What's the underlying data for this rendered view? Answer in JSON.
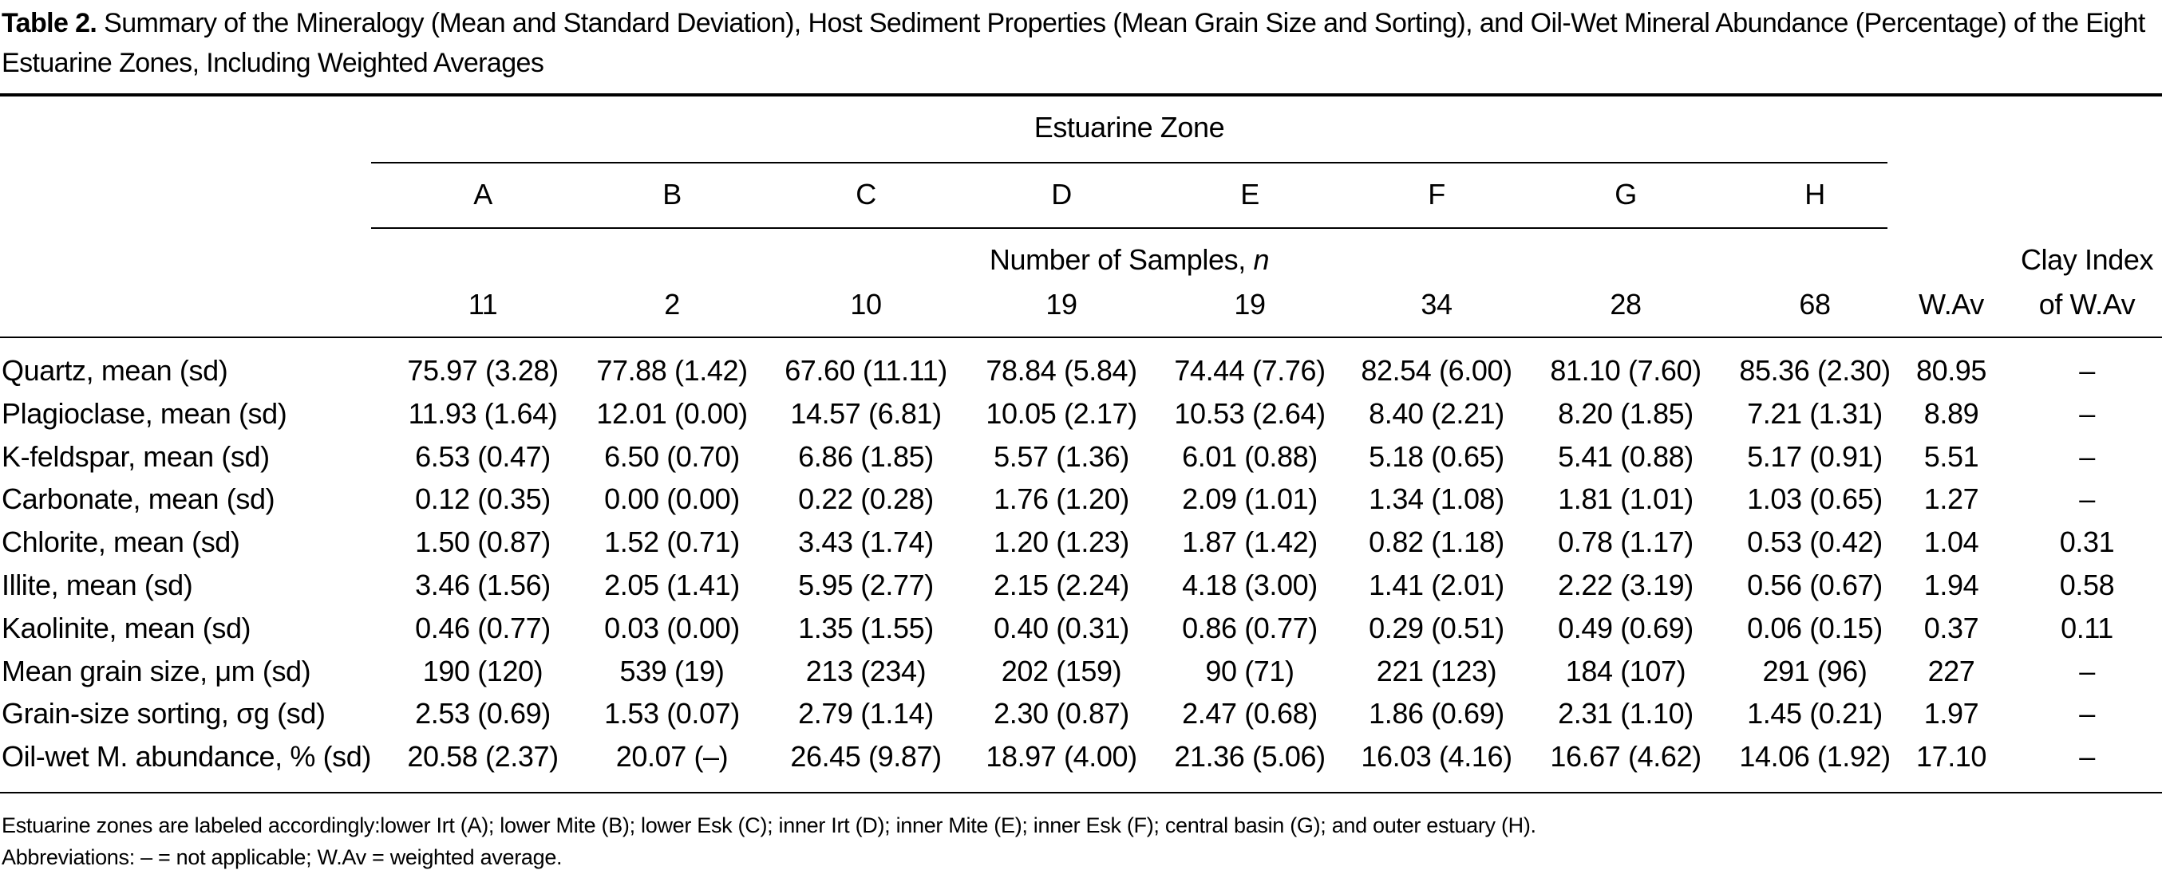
{
  "caption": {
    "label": "Table 2.",
    "text": "Summary of the Mineralogy (Mean and Standard Deviation), Host Sediment Properties (Mean Grain Size and Sorting), and Oil-Wet Mineral Abundance (Percentage) of the Eight Estuarine Zones, Including Weighted Averages"
  },
  "header": {
    "group_label": "Estuarine Zone",
    "zones": [
      "A",
      "B",
      "C",
      "D",
      "E",
      "F",
      "G",
      "H"
    ],
    "samples_label": "Number of Samples, ",
    "samples_var": "n",
    "samples": [
      "11",
      "2",
      "10",
      "19",
      "19",
      "34",
      "28",
      "68"
    ],
    "wav_label": "W.Av",
    "clay_label_1": "Clay Index",
    "clay_label_2": "of W.Av"
  },
  "rows": [
    {
      "label": "Quartz, mean (sd)",
      "values": [
        "75.97 (3.28)",
        "77.88 (1.42)",
        "67.60 (11.11)",
        "78.84 (5.84)",
        "74.44 (7.76)",
        "82.54 (6.00)",
        "81.10 (7.60)",
        "85.36 (2.30)"
      ],
      "wav": "80.95",
      "clay": "–"
    },
    {
      "label": "Plagioclase, mean (sd)",
      "values": [
        "11.93 (1.64)",
        "12.01 (0.00)",
        "14.57 (6.81)",
        "10.05 (2.17)",
        "10.53 (2.64)",
        "8.40 (2.21)",
        "8.20 (1.85)",
        "7.21 (1.31)"
      ],
      "wav": "8.89",
      "clay": "–"
    },
    {
      "label": "K-feldspar, mean (sd)",
      "values": [
        "6.53 (0.47)",
        "6.50 (0.70)",
        "6.86 (1.85)",
        "5.57 (1.36)",
        "6.01 (0.88)",
        "5.18 (0.65)",
        "5.41 (0.88)",
        "5.17 (0.91)"
      ],
      "wav": "5.51",
      "clay": "–"
    },
    {
      "label": "Carbonate, mean (sd)",
      "values": [
        "0.12 (0.35)",
        "0.00 (0.00)",
        "0.22 (0.28)",
        "1.76 (1.20)",
        "2.09 (1.01)",
        "1.34 (1.08)",
        "1.81 (1.01)",
        "1.03 (0.65)"
      ],
      "wav": "1.27",
      "clay": "–"
    },
    {
      "label": "Chlorite, mean (sd)",
      "values": [
        "1.50 (0.87)",
        "1.52 (0.71)",
        "3.43 (1.74)",
        "1.20 (1.23)",
        "1.87 (1.42)",
        "0.82 (1.18)",
        "0.78 (1.17)",
        "0.53 (0.42)"
      ],
      "wav": "1.04",
      "clay": "0.31"
    },
    {
      "label": "Illite, mean (sd)",
      "values": [
        "3.46 (1.56)",
        "2.05 (1.41)",
        "5.95 (2.77)",
        "2.15 (2.24)",
        "4.18 (3.00)",
        "1.41 (2.01)",
        "2.22 (3.19)",
        "0.56 (0.67)"
      ],
      "wav": "1.94",
      "clay": "0.58"
    },
    {
      "label": "Kaolinite, mean (sd)",
      "values": [
        "0.46 (0.77)",
        "0.03 (0.00)",
        "1.35 (1.55)",
        "0.40 (0.31)",
        "0.86 (0.77)",
        "0.29 (0.51)",
        "0.49 (0.69)",
        "0.06 (0.15)"
      ],
      "wav": "0.37",
      "clay": "0.11"
    },
    {
      "label": "Mean grain size, μm (sd)",
      "values": [
        "190 (120)",
        "539 (19)",
        "213 (234)",
        "202 (159)",
        "90 (71)",
        "221 (123)",
        "184 (107)",
        "291 (96)"
      ],
      "wav": "227",
      "clay": "–"
    },
    {
      "label": "Grain-size sorting, σg (sd)",
      "values": [
        "2.53 (0.69)",
        "1.53 (0.07)",
        "2.79 (1.14)",
        "2.30 (0.87)",
        "2.47 (0.68)",
        "1.86 (0.69)",
        "2.31 (1.10)",
        "1.45 (0.21)"
      ],
      "wav": "1.97",
      "clay": "–"
    },
    {
      "label": "Oil-wet M. abundance, % (sd)",
      "values": [
        "20.58 (2.37)",
        "20.07 (–)",
        "26.45 (9.87)",
        "18.97 (4.00)",
        "21.36 (5.06)",
        "16.03 (4.16)",
        "16.67 (4.62)",
        "14.06 (1.92)"
      ],
      "wav": "17.10",
      "clay": "–"
    }
  ],
  "footnotes": {
    "zones_note": "Estuarine zones are labeled accordingly:lower Irt (A); lower Mite (B); lower Esk (C); inner Irt (D); inner Mite (E); inner Esk (F); central basin (G); and outer estuary (H).",
    "abbrev_note": "Abbreviations: – = not applicable; W.Av = weighted average."
  }
}
